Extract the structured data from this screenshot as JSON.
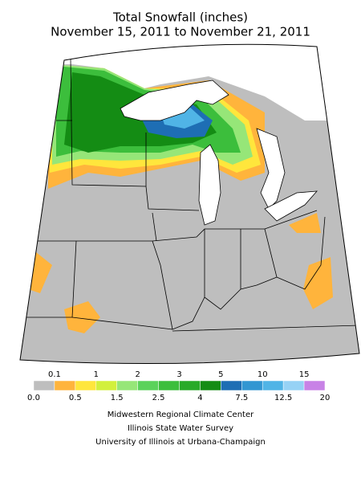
{
  "header": {
    "title": "Total Snowfall (inches)",
    "subtitle": "November 15, 2011 to November 21, 2011"
  },
  "legend": {
    "labels": [
      "0.0",
      "0.1",
      "0.5",
      "1",
      "1.5",
      "2",
      "2.5",
      "3",
      "4",
      "5",
      "7.5",
      "10",
      "12.5",
      "15",
      "20"
    ],
    "colors": [
      "#bebebe",
      "#ffb43c",
      "#ffe63c",
      "#d2f03c",
      "#96e678",
      "#5ad25a",
      "#3cbe3c",
      "#28aa28",
      "#148c14",
      "#1e6eb4",
      "#3296d2",
      "#50b4e6",
      "#96d2f5",
      "#c882e6"
    ]
  },
  "credits": [
    "Midwestern Regional Climate Center",
    "Illinois State Water Survey",
    "University of Illinois at Urbana-Champaign"
  ]
}
